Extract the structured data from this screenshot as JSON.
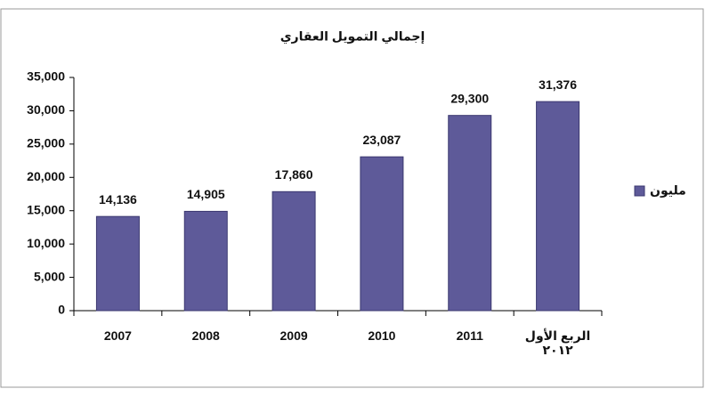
{
  "chart_data": {
    "type": "bar",
    "title": "إجمالي التمويل العقاري",
    "categories": [
      "2007",
      "2008",
      "2009",
      "2010",
      "2011",
      "الربع الأول\n٢٠١٢"
    ],
    "series": [
      {
        "name": "مليون",
        "color": "#5e5a99",
        "values": [
          14136,
          14905,
          17860,
          23087,
          29300,
          31376
        ],
        "value_labels": [
          "14,136",
          "14,905",
          "17,860",
          "23,087",
          "29,300",
          "31,376"
        ]
      }
    ],
    "ylim": [
      0,
      35000
    ],
    "yticks": [
      0,
      {
        "value": 5000,
        "label": "5,000"
      },
      {
        "value": 10000,
        "label": "10,000"
      },
      {
        "value": 15000,
        "label": "15,000"
      },
      {
        "value": 20000,
        "label": "20,000"
      },
      {
        "value": 25000,
        "label": "25,000"
      },
      {
        "value": 30000,
        "label": "30,000"
      },
      {
        "value": 35000,
        "label": "35,000"
      }
    ],
    "legend": "right"
  }
}
